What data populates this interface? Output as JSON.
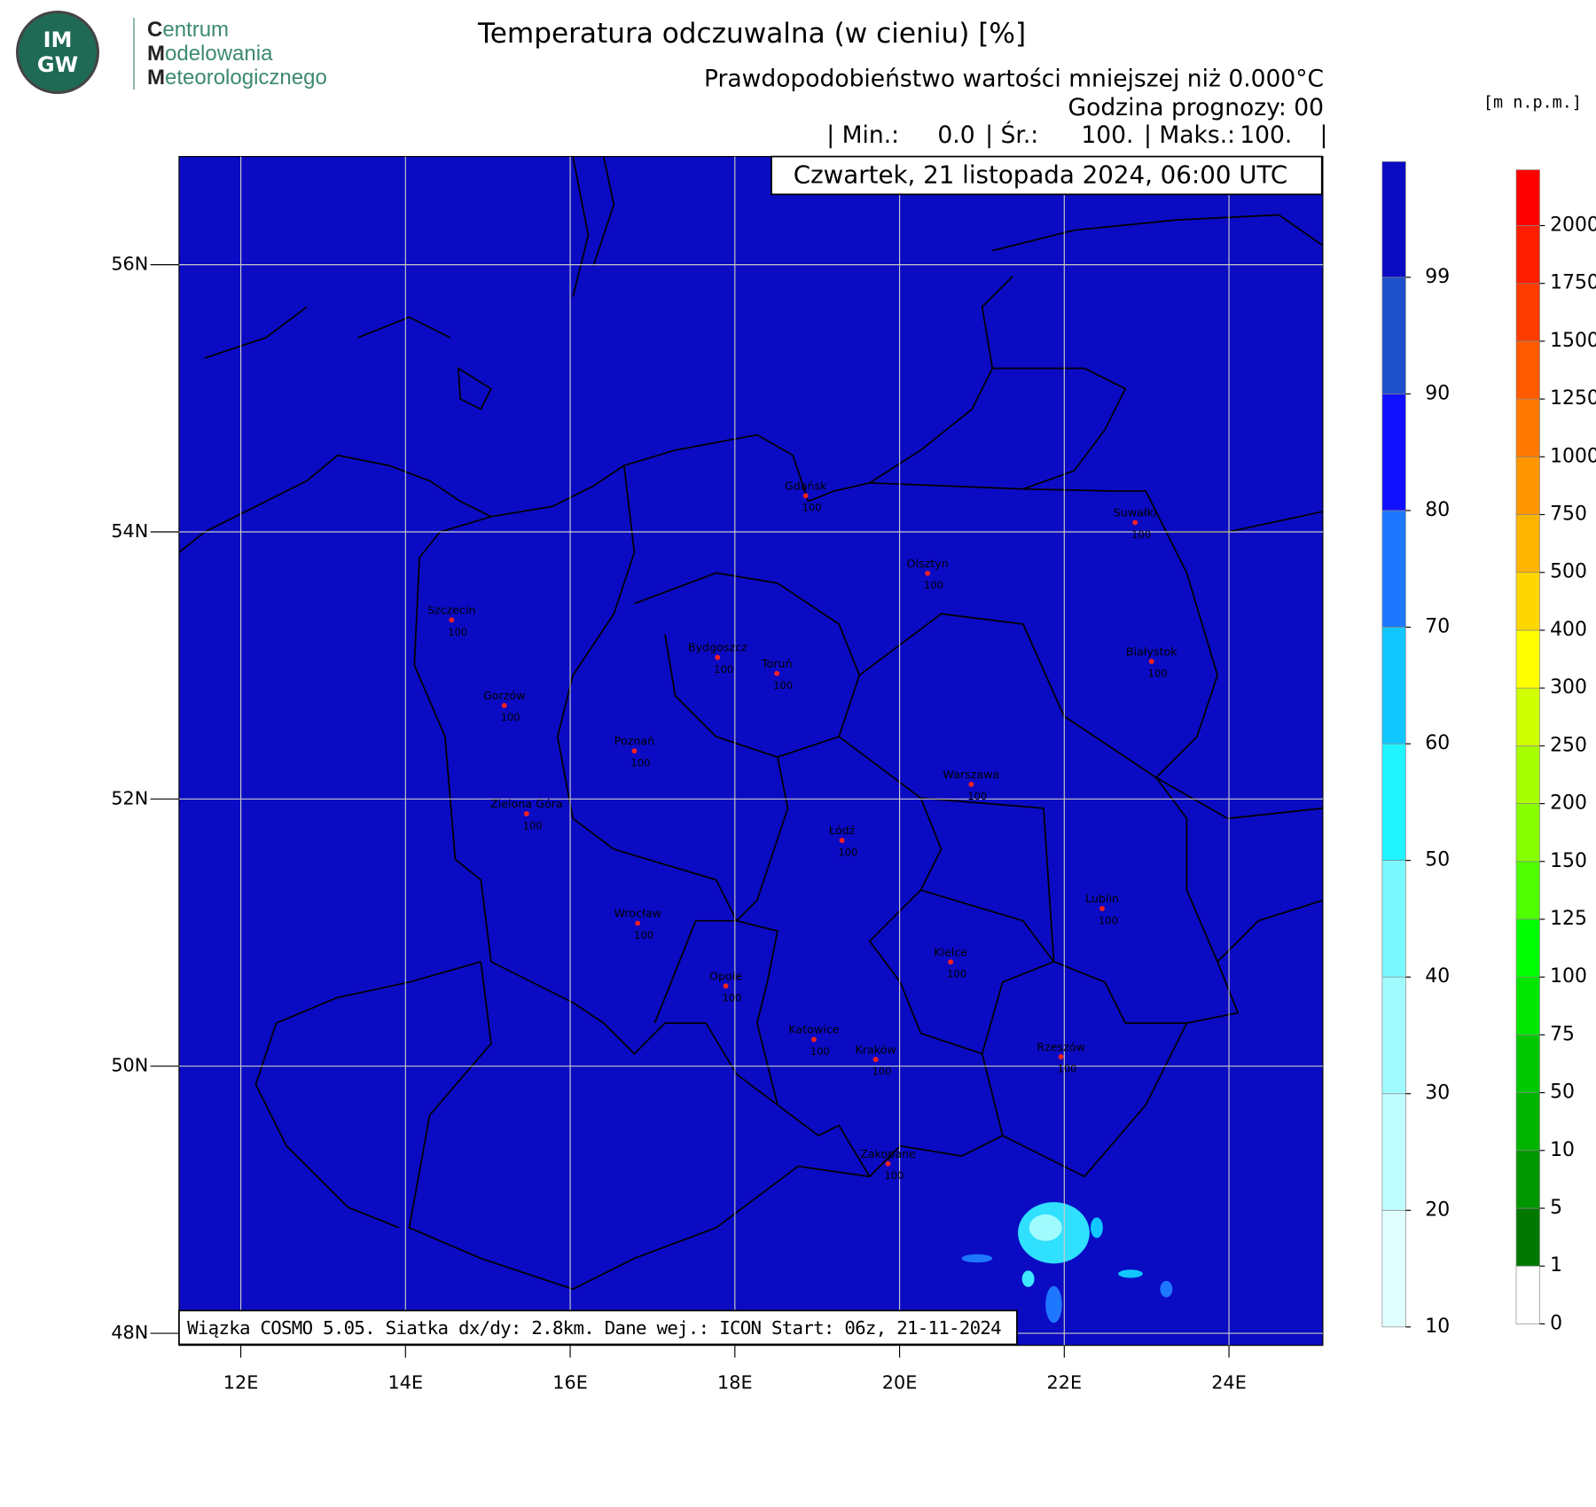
{
  "header": {
    "title": "Temperatura odczuwalna (w cieniu) [%]",
    "subtitle": "Prawdopodobieństwo wartości mniejszej niż 0.000°C",
    "forecast_hour": "Godzina prognozy: 00",
    "stats": [
      {
        "label": "| Min.:",
        "value": "0.0"
      },
      {
        "label": "| Śr.:",
        "value": "100."
      },
      {
        "label": "| Maks.:",
        "value": "100."
      }
    ],
    "stats_end": "|",
    "date": "Czwartek, 21 listopada 2024, 06:00 UTC"
  },
  "logo": {
    "mark": [
      "IM",
      "GW"
    ],
    "lines": [
      "Centrum",
      "Modelowania",
      "Meteorologicznego"
    ]
  },
  "map": {
    "lon_range": [
      11.25,
      25.14
    ],
    "lat_range": [
      47.91,
      56.81
    ],
    "lon_ticks": [
      {
        "value": 12,
        "label": "12E"
      },
      {
        "value": 14,
        "label": "14E"
      },
      {
        "value": 16,
        "label": "16E"
      },
      {
        "value": 18,
        "label": "18E"
      },
      {
        "value": 20,
        "label": "20E"
      },
      {
        "value": 22,
        "label": "22E"
      },
      {
        "value": 24,
        "label": "24E"
      }
    ],
    "lat_ticks": [
      {
        "value": 48,
        "label": "48N"
      },
      {
        "value": 50,
        "label": "50N"
      },
      {
        "value": 52,
        "label": "52N"
      },
      {
        "value": 54,
        "label": "54N"
      },
      {
        "value": 56,
        "label": "56N"
      }
    ],
    "background_color": "#0b0bc4",
    "cities": [
      {
        "name": "Gdańsk",
        "lon": 18.86,
        "lat": 54.27,
        "value": 100
      },
      {
        "name": "Suwałki",
        "lon": 22.86,
        "lat": 54.07,
        "value": 100
      },
      {
        "name": "Olsztyn",
        "lon": 20.34,
        "lat": 53.69,
        "value": 100
      },
      {
        "name": "Szczecin",
        "lon": 14.56,
        "lat": 53.34,
        "value": 100
      },
      {
        "name": "Bydgoszcz",
        "lon": 17.79,
        "lat": 53.06,
        "value": 100
      },
      {
        "name": "Toruń",
        "lon": 18.51,
        "lat": 52.94,
        "value": 100
      },
      {
        "name": "Białystok",
        "lon": 23.06,
        "lat": 53.03,
        "value": 100
      },
      {
        "name": "Gorzów",
        "lon": 15.2,
        "lat": 52.7,
        "value": 100
      },
      {
        "name": "Poznań",
        "lon": 16.78,
        "lat": 52.36,
        "value": 100
      },
      {
        "name": "Warszawa",
        "lon": 20.87,
        "lat": 52.11,
        "value": 100
      },
      {
        "name": "Zielona Góra",
        "lon": 15.47,
        "lat": 51.89,
        "value": 100
      },
      {
        "name": "Łódź",
        "lon": 19.3,
        "lat": 51.69,
        "value": 100
      },
      {
        "name": "Lublin",
        "lon": 22.46,
        "lat": 51.18,
        "value": 100
      },
      {
        "name": "Wrocław",
        "lon": 16.82,
        "lat": 51.07,
        "value": 100
      },
      {
        "name": "Kielce",
        "lon": 20.62,
        "lat": 50.78,
        "value": 100
      },
      {
        "name": "Opole",
        "lon": 17.89,
        "lat": 50.6,
        "value": 100
      },
      {
        "name": "Katowice",
        "lon": 18.96,
        "lat": 50.2,
        "value": 100
      },
      {
        "name": "Kraków",
        "lon": 19.71,
        "lat": 50.05,
        "value": 100
      },
      {
        "name": "Rzeszów",
        "lon": 21.96,
        "lat": 50.07,
        "value": 100
      },
      {
        "name": "Zakopane",
        "lon": 19.86,
        "lat": 49.27,
        "value": 100
      }
    ]
  },
  "footer": "Wiązka COSMO 5.05. Siatka dx/dy: 2.8km. Dane wej.: ICON Start: 06z, 21-11-2024",
  "probability_scale": {
    "levels": [
      10,
      20,
      30,
      40,
      50,
      60,
      70,
      80,
      90,
      99
    ],
    "colors": [
      "#e0ffff",
      "#c0fdff",
      "#a0fbff",
      "#7af8ff",
      "#20f4ff",
      "#10c8ff",
      "#1e78ff",
      "#1010ff",
      "#1e50cc",
      "#0b0bc4"
    ]
  },
  "elevation_scale": {
    "title": "[m n.p.m.]",
    "levels": [
      0,
      1,
      5,
      10,
      50,
      75,
      100,
      125,
      150,
      200,
      250,
      300,
      400,
      500,
      750,
      1000,
      1250,
      1500,
      1750,
      2000
    ],
    "colors": [
      "#ffffff",
      "#007800",
      "#009600",
      "#00b400",
      "#00c800",
      "#00e600",
      "#00ff00",
      "#50ff00",
      "#88ff00",
      "#a8ff00",
      "#d0ff00",
      "#ffff00",
      "#ffd700",
      "#ffb400",
      "#ff9600",
      "#ff7800",
      "#ff5a00",
      "#ff3c00",
      "#ff1e00",
      "#ff0000"
    ]
  }
}
